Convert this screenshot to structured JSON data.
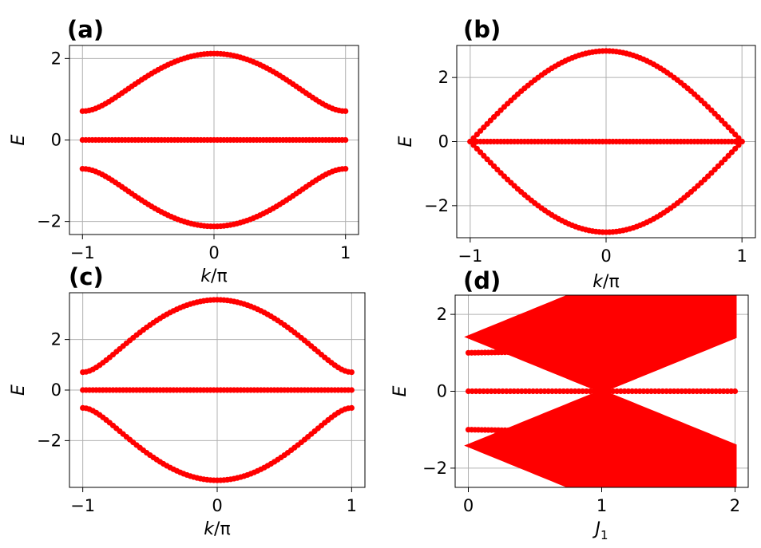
{
  "colors": {
    "data": "#ff0000",
    "grid": "#b0b0b0",
    "axis": "#000000"
  },
  "chart_data": [
    {
      "panel": "(a)",
      "type": "scatter",
      "xlabel_var": "k",
      "xlabel_rest": "/π",
      "ylabel": "E",
      "xlim": [
        -1.0,
        1.0
      ],
      "ylim": [
        -2.32,
        2.32
      ],
      "xticks": [
        -1,
        0,
        1
      ],
      "yticks": [
        -2,
        0,
        2
      ],
      "grid": true,
      "model": {
        "kind": "flatband",
        "a": 1.414,
        "b": 0.707
      },
      "series": [
        {
          "role": "upper band",
          "E_at_k_-1": 0.71,
          "E_at_k_0": 2.12,
          "E_at_k_1": 0.71
        },
        {
          "role": "flat band",
          "E": 0
        },
        {
          "role": "lower band",
          "E_at_k_-1": -0.71,
          "E_at_k_0": -2.12,
          "E_at_k_1": -0.71
        }
      ]
    },
    {
      "panel": "(b)",
      "type": "scatter",
      "xlabel_var": "k",
      "xlabel_rest": "/π",
      "ylabel": "E",
      "xlim": [
        -1.0,
        1.0
      ],
      "ylim": [
        -3.0,
        3.0
      ],
      "xticks": [
        -1,
        0,
        1
      ],
      "yticks": [
        -2,
        0,
        2
      ],
      "grid": true,
      "model": {
        "kind": "flatband",
        "a": 2.0,
        "b": 0.0
      },
      "series": [
        {
          "role": "upper band",
          "E_at_k_-1": 0.0,
          "E_at_k_0": 2.83,
          "E_at_k_1": 0.0
        },
        {
          "role": "flat band",
          "E": 0
        },
        {
          "role": "lower band",
          "E_at_k_-1": 0.0,
          "E_at_k_0": -2.83,
          "E_at_k_1": 0.0
        }
      ]
    },
    {
      "panel": "(c)",
      "type": "scatter",
      "xlabel_var": "k",
      "xlabel_rest": "/π",
      "ylabel": "E",
      "xlim": [
        -1.0,
        1.0
      ],
      "ylim": [
        -3.85,
        3.85
      ],
      "xticks": [
        -1,
        0,
        1
      ],
      "yticks": [
        -2,
        0,
        2
      ],
      "grid": true,
      "model": {
        "kind": "flatband",
        "a": 2.475,
        "b": 0.707
      },
      "series": [
        {
          "role": "upper band",
          "E_at_k_-1": 0.71,
          "E_at_k_0": 3.54,
          "E_at_k_1": 0.71
        },
        {
          "role": "flat band",
          "E": 0
        },
        {
          "role": "lower band",
          "E_at_k_-1": -0.71,
          "E_at_k_0": -3.54,
          "E_at_k_1": -0.71
        }
      ]
    },
    {
      "panel": "(d)",
      "type": "scatter",
      "xlabel_var": "J",
      "xlabel_sub": "1",
      "ylabel": "E",
      "xlim": [
        0.0,
        2.0
      ],
      "ylim": [
        -2.5,
        2.5
      ],
      "xticks": [
        0,
        1,
        2
      ],
      "yticks": [
        -2,
        0,
        2
      ],
      "grid": true,
      "model": {
        "kind": "spectrum_vs_J1"
      },
      "series": [
        {
          "role": "zero modes",
          "E": 0,
          "J1_range": [
            0,
            2
          ]
        },
        {
          "role": "edge states",
          "E_at_J1_0": [
            1.0,
            -1.0
          ],
          "merge_J1": 0.3
        },
        {
          "role": "bulk band upper",
          "inner_edge": "|1 - J1| * 1.414",
          "outer_edge": "(1 + J1) * 1.414"
        },
        {
          "role": "bulk band lower",
          "inner_edge": "-|1 - J1| * 1.414",
          "outer_edge": "-(1 + J1) * 1.414"
        }
      ]
    }
  ]
}
